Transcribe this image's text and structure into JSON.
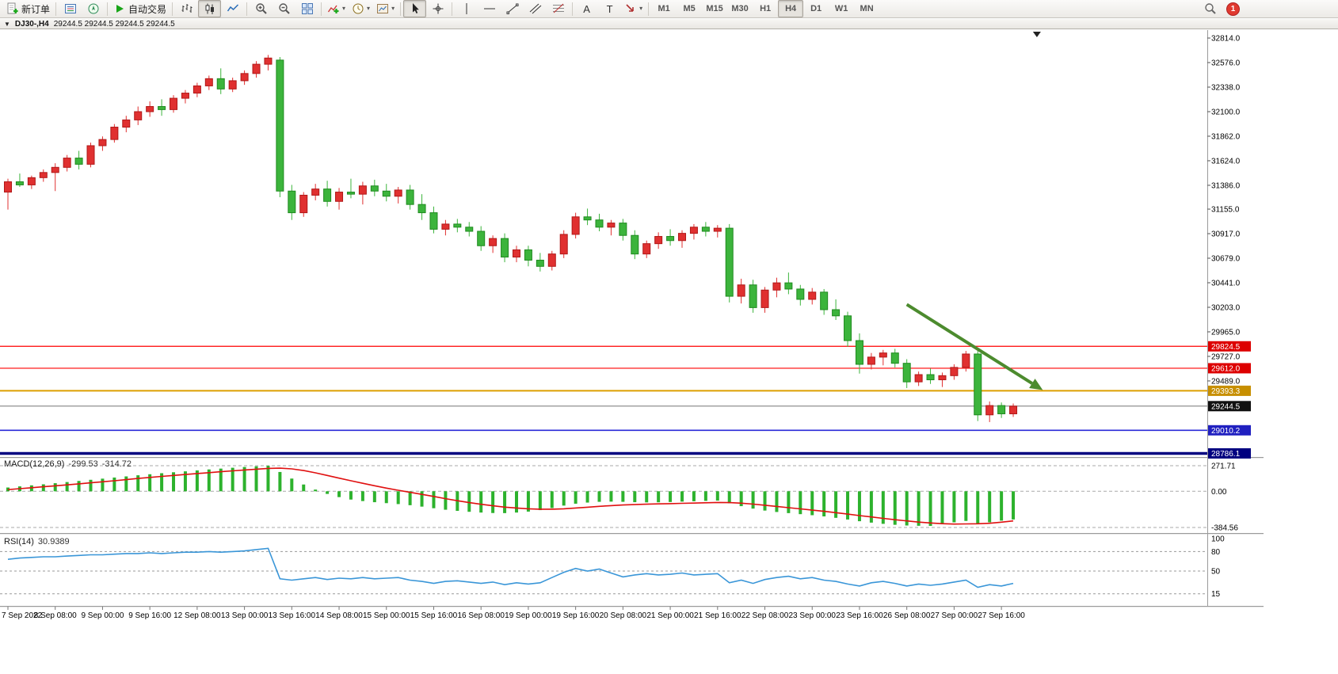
{
  "window": {
    "badge_count": "1"
  },
  "toolbar": {
    "new_order_label": "新订单",
    "autotrading_label": "自动交易",
    "timeframes": [
      "M1",
      "M5",
      "M15",
      "M30",
      "H1",
      "H4",
      "D1",
      "W1",
      "MN"
    ],
    "active_timeframe": "H4",
    "text_tool_label": "A",
    "label_tool_label": "T"
  },
  "chart_header": {
    "symbol_period": "DJ30-,H4",
    "ohlc": "29244.5 29244.5 29244.5 29244.5"
  },
  "colors": {
    "bull": "#e03030",
    "bull_border": "#b01818",
    "bear": "#3cb43c",
    "bear_border": "#1f8a1f",
    "macd_hist": "#2db22d",
    "macd_signal": "#e01010",
    "rsi_line": "#3a96d8",
    "arrow": "#4c8b2e",
    "accent_red_line": "#ff0000",
    "gold_line": "#dd9f00",
    "blue_line": "#2929d8",
    "navy_line": "#000080"
  },
  "chart_data": [
    {
      "type": "candlestick",
      "symbol": "DJ30-",
      "timeframe": "H4",
      "last_price": "29244.5",
      "ylim": [
        28759,
        32891
      ],
      "y_ticks": [
        "32814.0",
        "32576.0",
        "32338.0",
        "32100.0",
        "31862.0",
        "31624.0",
        "31386.0",
        "31155.0",
        "30917.0",
        "30679.0",
        "30441.0",
        "30203.0",
        "29965.0",
        "29727.0",
        "29489.0"
      ],
      "x_labels": [
        "7 Sep 2022",
        "8 Sep 08:00",
        "9 Sep 00:00",
        "9 Sep 16:00",
        "12 Sep 08:00",
        "13 Sep 00:00",
        "13 Sep 16:00",
        "14 Sep 08:00",
        "15 Sep 00:00",
        "15 Sep 16:00",
        "16 Sep 08:00",
        "19 Sep 00:00",
        "19 Sep 16:00",
        "20 Sep 08:00",
        "21 Sep 00:00",
        "21 Sep 16:00",
        "22 Sep 08:00",
        "23 Sep 00:00",
        "23 Sep 16:00",
        "26 Sep 08:00",
        "27 Sep 00:00",
        "27 Sep 16:00"
      ],
      "label_every_n_bars": 4,
      "bull_color": "#e03030",
      "bull_border": "#b01818",
      "bear_color": "#3cb43c",
      "bear_border": "#1f8a1f",
      "bars": [
        [
          31320,
          31450,
          31150,
          31420
        ],
        [
          31420,
          31500,
          31370,
          31390
        ],
        [
          31390,
          31480,
          31350,
          31460
        ],
        [
          31460,
          31540,
          31420,
          31510
        ],
        [
          31510,
          31600,
          31330,
          31560
        ],
        [
          31560,
          31680,
          31520,
          31650
        ],
        [
          31650,
          31720,
          31540,
          31590
        ],
        [
          31590,
          31800,
          31560,
          31770
        ],
        [
          31770,
          31860,
          31720,
          31830
        ],
        [
          31830,
          31980,
          31800,
          31950
        ],
        [
          31950,
          32060,
          31900,
          32020
        ],
        [
          32020,
          32150,
          31970,
          32100
        ],
        [
          32100,
          32200,
          32050,
          32150
        ],
        [
          32150,
          32220,
          32060,
          32120
        ],
        [
          32120,
          32260,
          32090,
          32230
        ],
        [
          32230,
          32310,
          32180,
          32280
        ],
        [
          32280,
          32380,
          32240,
          32350
        ],
        [
          32350,
          32450,
          32310,
          32420
        ],
        [
          32420,
          32520,
          32270,
          32320
        ],
        [
          32320,
          32430,
          32290,
          32400
        ],
        [
          32400,
          32500,
          32360,
          32470
        ],
        [
          32470,
          32590,
          32430,
          32560
        ],
        [
          32560,
          32650,
          32500,
          32620
        ],
        [
          32600,
          32630,
          31270,
          31330
        ],
        [
          31330,
          31390,
          31050,
          31120
        ],
        [
          31120,
          31320,
          31080,
          31290
        ],
        [
          31290,
          31400,
          31240,
          31350
        ],
        [
          31350,
          31430,
          31180,
          31230
        ],
        [
          31230,
          31360,
          31150,
          31320
        ],
        [
          31320,
          31450,
          31260,
          31300
        ],
        [
          31300,
          31420,
          31200,
          31380
        ],
        [
          31380,
          31440,
          31280,
          31330
        ],
        [
          31330,
          31400,
          31230,
          31280
        ],
        [
          31280,
          31370,
          31210,
          31340
        ],
        [
          31340,
          31390,
          31150,
          31200
        ],
        [
          31200,
          31300,
          31050,
          31120
        ],
        [
          31120,
          31180,
          30920,
          30960
        ],
        [
          30960,
          31050,
          30900,
          31010
        ],
        [
          31010,
          31060,
          30930,
          30980
        ],
        [
          30980,
          31030,
          30890,
          30940
        ],
        [
          30940,
          30990,
          30750,
          30800
        ],
        [
          30800,
          30900,
          30730,
          30870
        ],
        [
          30870,
          30920,
          30640,
          30690
        ],
        [
          30690,
          30800,
          30640,
          30760
        ],
        [
          30760,
          30800,
          30600,
          30660
        ],
        [
          30660,
          30730,
          30550,
          30600
        ],
        [
          30600,
          30750,
          30560,
          30720
        ],
        [
          30720,
          30950,
          30680,
          30910
        ],
        [
          30910,
          31120,
          30870,
          31080
        ],
        [
          31080,
          31160,
          31000,
          31050
        ],
        [
          31050,
          31110,
          30940,
          30980
        ],
        [
          30980,
          31050,
          30900,
          31020
        ],
        [
          31020,
          31060,
          30850,
          30900
        ],
        [
          30900,
          30950,
          30670,
          30720
        ],
        [
          30720,
          30850,
          30680,
          30820
        ],
        [
          30820,
          30930,
          30770,
          30890
        ],
        [
          30890,
          30960,
          30800,
          30850
        ],
        [
          30850,
          30950,
          30780,
          30920
        ],
        [
          30920,
          31010,
          30860,
          30980
        ],
        [
          30980,
          31030,
          30890,
          30940
        ],
        [
          30940,
          31000,
          30880,
          30970
        ],
        [
          30970,
          31010,
          30250,
          30310
        ],
        [
          30310,
          30480,
          30240,
          30420
        ],
        [
          30420,
          30470,
          30150,
          30200
        ],
        [
          30200,
          30400,
          30150,
          30370
        ],
        [
          30370,
          30490,
          30300,
          30440
        ],
        [
          30440,
          30540,
          30330,
          30380
        ],
        [
          30380,
          30420,
          30220,
          30280
        ],
        [
          30280,
          30390,
          30230,
          30350
        ],
        [
          30350,
          30380,
          30130,
          30180
        ],
        [
          30180,
          30280,
          30080,
          30120
        ],
        [
          30120,
          30160,
          29820,
          29880
        ],
        [
          29880,
          29950,
          29560,
          29650
        ],
        [
          29650,
          29760,
          29600,
          29720
        ],
        [
          29720,
          29790,
          29640,
          29760
        ],
        [
          29760,
          29800,
          29620,
          29660
        ],
        [
          29660,
          29700,
          29420,
          29480
        ],
        [
          29480,
          29580,
          29440,
          29550
        ],
        [
          29550,
          29610,
          29460,
          29500
        ],
        [
          29500,
          29570,
          29430,
          29540
        ],
        [
          29540,
          29650,
          29500,
          29620
        ],
        [
          29620,
          29780,
          29580,
          29750
        ],
        [
          29750,
          29790,
          29100,
          29160
        ],
        [
          29160,
          29290,
          29090,
          29250
        ],
        [
          29250,
          29280,
          29130,
          29170
        ],
        [
          29170,
          29270,
          29140,
          29244.5
        ]
      ],
      "hlines": [
        {
          "price": 29824.5,
          "label": "29824.5",
          "color": "#ff0000",
          "width": 1.2,
          "tag_bg": "#dd0000"
        },
        {
          "price": 29612.0,
          "label": "29612.0",
          "color": "#ff0000",
          "width": 1.2,
          "tag_bg": "#dd0000"
        },
        {
          "price": 29393.3,
          "label": "29393.3",
          "color": "#dd9f00",
          "width": 2,
          "tag_bg": "#c78f00"
        },
        {
          "price": 29244.5,
          "label": "29244.5",
          "color": "#777777",
          "width": 1,
          "tag_bg": "#111111"
        },
        {
          "price": 29010.2,
          "label": "29010.2",
          "color": "#2929d8",
          "width": 1.6,
          "tag_bg": "#2020c0"
        },
        {
          "price": 28786.1,
          "label": "28786.1",
          "color": "#000080",
          "width": 3.5,
          "tag_bg": "#000080"
        }
      ],
      "arrow": {
        "from_bar": 76,
        "from_price": 30230,
        "to_bar": 87.5,
        "to_price": 29400,
        "color": "#4c8b2e"
      },
      "shift_marker_bar": 87
    },
    {
      "type": "macd_histogram",
      "label": "MACD(12,26,9)",
      "value_main": "-299.53",
      "value_signal": "-314.72",
      "ylim": [
        -384.56,
        271.71
      ],
      "y_ticks": [
        "271.71",
        "0.00",
        "-384.56"
      ],
      "hist_color": "#2db22d",
      "signal_color": "#e01010",
      "hist": [
        40,
        52,
        63,
        74,
        86,
        98,
        110,
        122,
        134,
        146,
        158,
        170,
        181,
        192,
        202,
        212,
        222,
        232,
        241,
        250,
        258,
        265,
        271,
        205,
        135,
        72,
        18,
        -28,
        -62,
        -88,
        -104,
        -116,
        -126,
        -136,
        -148,
        -163,
        -180,
        -196,
        -208,
        -218,
        -226,
        -231,
        -232,
        -226,
        -216,
        -200,
        -178,
        -152,
        -132,
        -120,
        -112,
        -110,
        -112,
        -116,
        -118,
        -117,
        -114,
        -110,
        -106,
        -102,
        -99,
        -128,
        -158,
        -184,
        -205,
        -220,
        -232,
        -243,
        -254,
        -267,
        -282,
        -300,
        -318,
        -333,
        -346,
        -356,
        -363,
        -367,
        -368,
        -350,
        -330,
        -315,
        -345,
        -330,
        -312,
        -299.53
      ],
      "signal": [
        18,
        28,
        38,
        48,
        58,
        68,
        79,
        90,
        101,
        112,
        124,
        136,
        147,
        158,
        168,
        178,
        188,
        198,
        208,
        217,
        226,
        235,
        243,
        246,
        238,
        220,
        196,
        168,
        140,
        112,
        85,
        59,
        34,
        11,
        -11,
        -33,
        -55,
        -78,
        -100,
        -120,
        -138,
        -154,
        -168,
        -178,
        -186,
        -190,
        -190,
        -186,
        -178,
        -169,
        -160,
        -152,
        -146,
        -141,
        -137,
        -134,
        -131,
        -128,
        -125,
        -122,
        -119,
        -120,
        -126,
        -136,
        -148,
        -161,
        -174,
        -187,
        -200,
        -213,
        -227,
        -242,
        -258,
        -273,
        -288,
        -302,
        -315,
        -327,
        -337,
        -344,
        -348,
        -347,
        -345,
        -340,
        -328,
        -314.72
      ]
    },
    {
      "type": "line",
      "label": "RSI(14)",
      "value": "30.9389",
      "ylim": [
        0,
        100
      ],
      "line_color": "#3a96d8",
      "levels": [
        {
          "value": 100,
          "label": "100",
          "line": false
        },
        {
          "value": 80,
          "label": "80",
          "line": true
        },
        {
          "value": 50,
          "label": "50",
          "line": true
        },
        {
          "value": 15,
          "label": "15",
          "line": true
        }
      ],
      "series": [
        68,
        70,
        71,
        72,
        72,
        73,
        74,
        75,
        75,
        76,
        77,
        77,
        78,
        77,
        78,
        79,
        79,
        80,
        79,
        80,
        81,
        83,
        85,
        38,
        36,
        38,
        40,
        37,
        39,
        38,
        40,
        38,
        39,
        40,
        36,
        34,
        31,
        34,
        35,
        33,
        31,
        33,
        29,
        32,
        30,
        32,
        40,
        48,
        54,
        50,
        53,
        47,
        41,
        44,
        46,
        44,
        45,
        47,
        44,
        45,
        46,
        32,
        36,
        31,
        37,
        40,
        42,
        38,
        40,
        36,
        34,
        30,
        27,
        32,
        34,
        31,
        27,
        30,
        28,
        30,
        33,
        36,
        25,
        29,
        27,
        30.94
      ]
    }
  ]
}
